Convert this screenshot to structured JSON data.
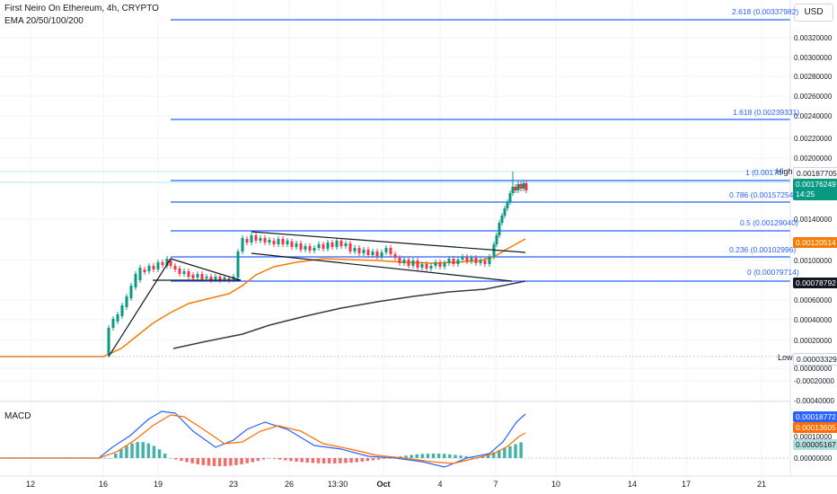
{
  "header": {
    "symbol_title": "First Neiro On Ethereum, 4h, CRYPTO",
    "indicator": "EMA 20/50/100/200",
    "currency": "USD"
  },
  "macd": {
    "label": "MACD"
  },
  "price_axis": {
    "ticks": [
      "0.00320000",
      "0.00300000",
      "0.00280000",
      "0.00260000",
      "0.00240000",
      "0.00220000",
      "0.00200000",
      "0.00140000",
      "0.00100000",
      "0.00060000",
      "0.00040000",
      "0.00020000",
      "0.00000000",
      "-0.00020000",
      "-0.00040000"
    ],
    "macd_ticks": [
      "0.00010000",
      "0.00000000"
    ]
  },
  "price_tags": {
    "high": "0.00187705",
    "last": "0.00176249",
    "countdown": "14:25",
    "ema_orange": "0.00120514",
    "ema_dark": "0.00078792",
    "low": "0.00003329",
    "macd_blue": "0.00018772",
    "macd_orange": "0.00013605",
    "macd_hist": "0.00005167"
  },
  "markers": {
    "high": "High",
    "low": "Low"
  },
  "fib_levels": [
    {
      "label": "2.618 (0.00337982)"
    },
    {
      "label": "1.618 (0.00239331)"
    },
    {
      "label": "1 (0.00178"
    },
    {
      "label": "0.786 (0.00157254)"
    },
    {
      "label": "0.5 (0.00129040)"
    },
    {
      "label": "0.236 (0.00102996)"
    },
    {
      "label": "0 (0.00079714)"
    }
  ],
  "time_axis": [
    "12",
    "16",
    "19",
    "23",
    "26",
    "13:30",
    "Oct",
    "4",
    "7",
    "10",
    "14",
    "17",
    "21"
  ],
  "colors": {
    "up": "#089981",
    "down": "#f23645",
    "fib": "#2962ff",
    "ema_orange": "#f57c00",
    "ema_dark": "#363a45",
    "macd_line": "#2962ff",
    "signal": "#ff6d00"
  }
}
